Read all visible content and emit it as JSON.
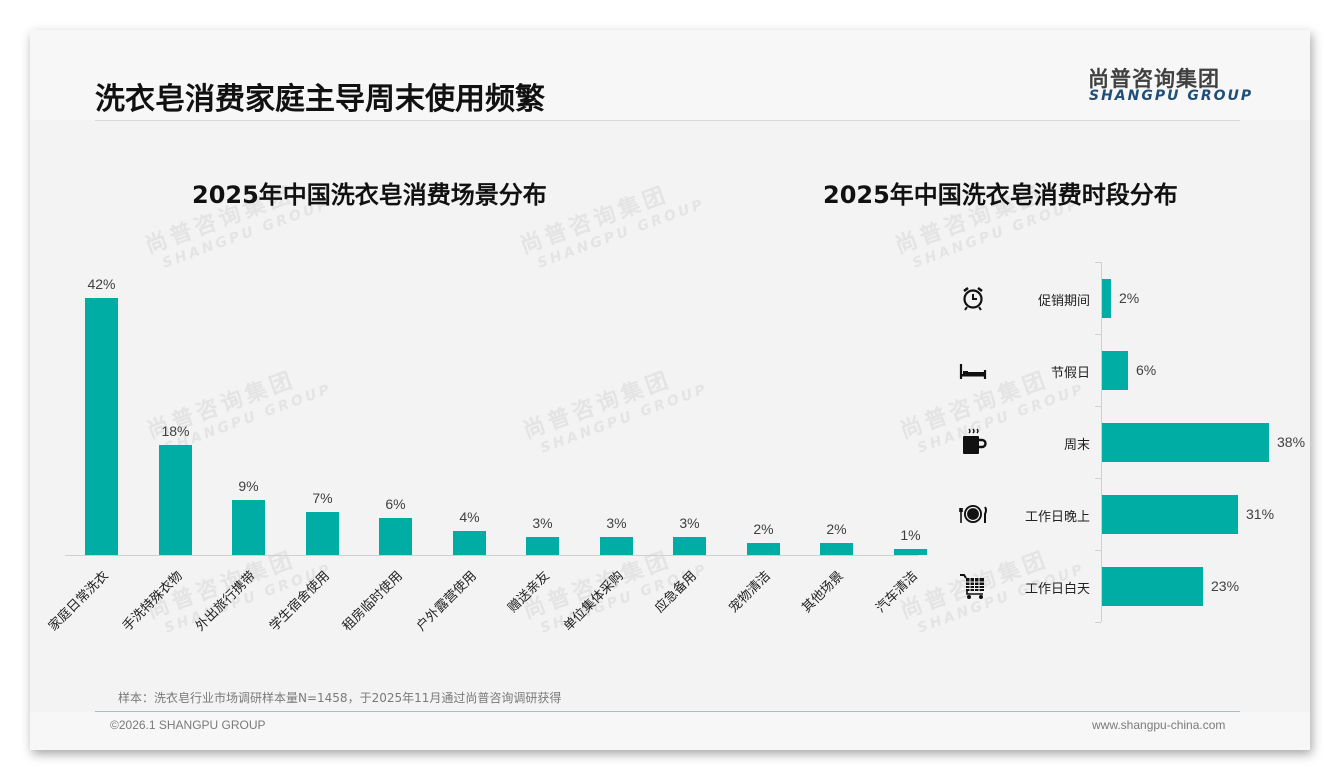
{
  "header": {
    "title": "洗衣皂消费家庭主导周末使用频繁",
    "logo_cn": "尚普咨询集团",
    "logo_en": "SHANGPU GROUP"
  },
  "watermark": {
    "cn": "尚普咨询集团",
    "en": "SHANGPU GROUP"
  },
  "colors": {
    "bar": "#00ada4",
    "logo_en": "#1f4e79",
    "background": "#f3f3f3"
  },
  "chart_data": [
    {
      "type": "bar",
      "title": "2025年中国洗衣皂消费场景分布",
      "categories": [
        "家庭日常洗衣",
        "手洗特殊衣物",
        "外出旅行携带",
        "学生宿舍使用",
        "租房临时使用",
        "户外露营使用",
        "赠送亲友",
        "单位集体采购",
        "应急备用",
        "宠物清洁",
        "其他场景",
        "汽车清洁"
      ],
      "values": [
        42,
        18,
        9,
        7,
        6,
        4,
        3,
        3,
        3,
        2,
        2,
        1
      ],
      "value_labels": [
        "42%",
        "18%",
        "9%",
        "7%",
        "6%",
        "4%",
        "3%",
        "3%",
        "3%",
        "2%",
        "2%",
        "1%"
      ],
      "unit": "%",
      "xlabel": "",
      "ylabel": "",
      "grid": false,
      "legend": null,
      "orientation": "vertical",
      "label_rotation": -45
    },
    {
      "type": "bar",
      "title": "2025年中国洗衣皂消费时段分布",
      "categories": [
        "促销期间",
        "节假日",
        "周末",
        "工作日晚上",
        "工作日白天"
      ],
      "values": [
        2,
        6,
        38,
        31,
        23
      ],
      "value_labels": [
        "2%",
        "6%",
        "38%",
        "31%",
        "23%"
      ],
      "icons": [
        "alarm-clock-icon",
        "bed-icon",
        "hot-coffee-icon",
        "plate-cutlery-icon",
        "shopping-cart-icon"
      ],
      "unit": "%",
      "xlabel": "",
      "ylabel": "",
      "grid": false,
      "legend": null,
      "orientation": "horizontal"
    }
  ],
  "footer": {
    "note": "样本：洗衣皂行业市场调研样本量N=1458，于2025年11月通过尚普咨询调研获得",
    "copyright": "©2026.1 SHANGPU GROUP",
    "website": "www.shangpu-china.com"
  }
}
